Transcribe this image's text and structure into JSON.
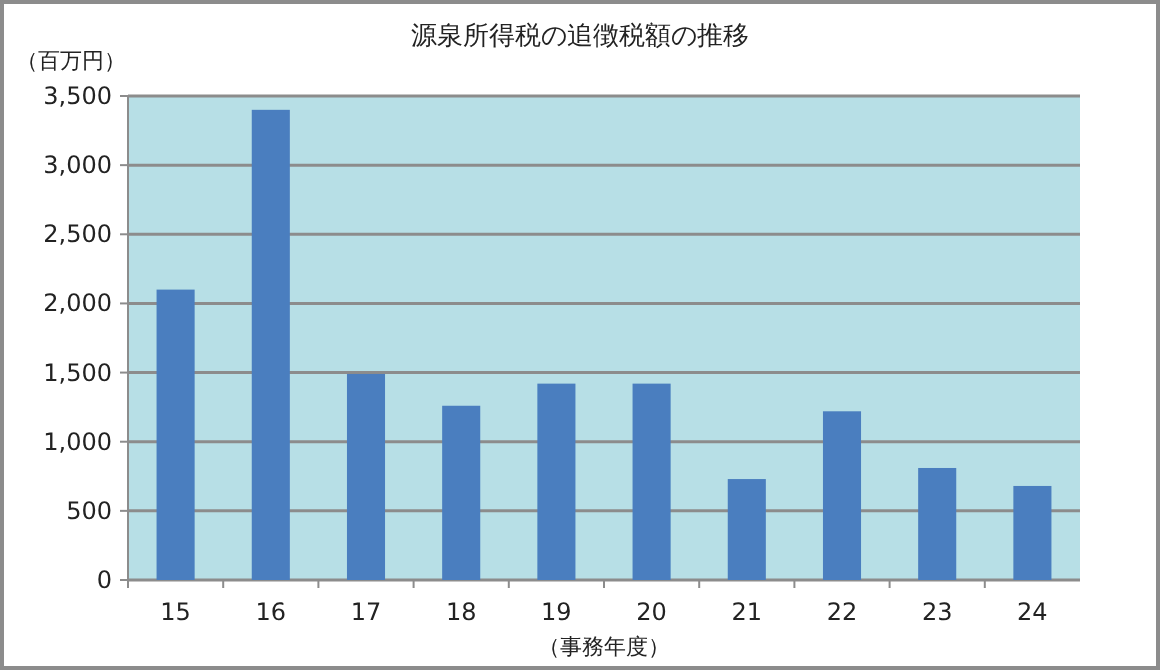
{
  "chart_data": {
    "type": "bar",
    "title": "源泉所得税の追徴税額の推移",
    "ylabel": "（百万円）",
    "xlabel": "（事務年度）",
    "categories": [
      "15",
      "16",
      "17",
      "18",
      "19",
      "20",
      "21",
      "22",
      "23",
      "24"
    ],
    "values": [
      2100,
      3400,
      1490,
      1260,
      1420,
      1420,
      730,
      1220,
      810,
      680
    ],
    "color": "#4a7ebf",
    "ylim": [
      0,
      3500
    ],
    "yticks": [
      0,
      500,
      {
        "value": 1000,
        "label": "1,000"
      },
      {
        "value": 1500,
        "label": "1,500"
      },
      {
        "value": 2000,
        "label": "2,000"
      },
      {
        "value": 2500,
        "label": "2,500"
      },
      {
        "value": 3000,
        "label": "3,000"
      },
      {
        "value": 3500,
        "label": "3,500"
      }
    ],
    "grid": "y"
  }
}
